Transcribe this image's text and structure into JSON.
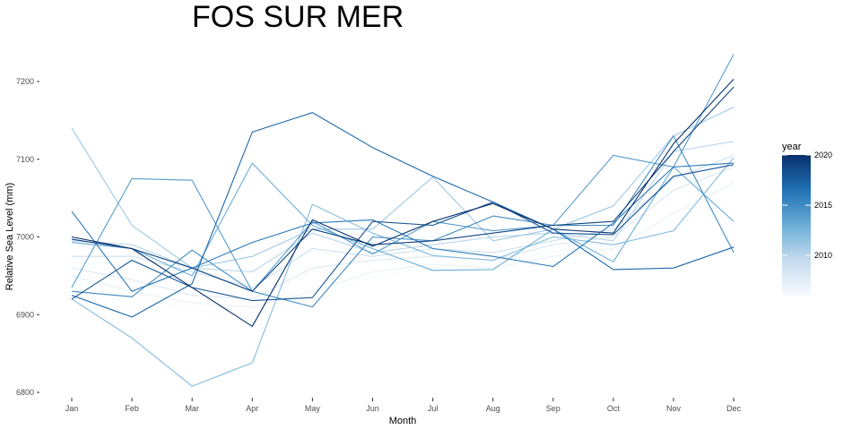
{
  "chart_data": {
    "type": "line",
    "title": "FOS SUR MER",
    "xlabel": "Month",
    "ylabel": "Relative Sea Level (mm)",
    "categories": [
      "Jan",
      "Feb",
      "Mar",
      "Apr",
      "May",
      "Jun",
      "Jul",
      "Aug",
      "Sep",
      "Oct",
      "Nov",
      "Dec"
    ],
    "y_ticks": [
      6800,
      6900,
      7000,
      7100,
      7200
    ],
    "ylim": [
      6790,
      7240
    ],
    "grid": false,
    "legend": {
      "title": "year",
      "position": "right",
      "type": "colorbar",
      "range": [
        2006,
        2020
      ],
      "ticks": [
        2010,
        2015,
        2020
      ],
      "colors": [
        "#f7fbff",
        "#c6dbef",
        "#6baed6",
        "#2171b5",
        "#08306b"
      ]
    },
    "series": [
      {
        "year": 2006,
        "values": [
          6930,
          6925,
          6905,
          6900,
          6920,
          6950,
          6960,
          6970,
          6980,
          6990,
          7010,
          7050
        ]
      },
      {
        "year": 2007,
        "values": [
          6950,
          6930,
          6915,
          6910,
          6930,
          6955,
          6965,
          6960,
          6975,
          6985,
          7030,
          7070
        ]
      },
      {
        "year": 2008,
        "values": [
          6960,
          6945,
          6925,
          6920,
          6960,
          6970,
          6975,
          6970,
          6990,
          7000,
          7060,
          7090
        ]
      },
      {
        "year": 2009,
        "values": [
          6975,
          6975,
          6955,
          6935,
          6985,
          6975,
          6985,
          6980,
          6995,
          7010,
          7075,
          7105
        ]
      },
      {
        "year": 2010,
        "values": [
          6995,
          6990,
          6960,
          6955,
          7005,
          6980,
          6990,
          7000,
          7005,
          6995,
          7110,
          7123
        ]
      },
      {
        "year": 2011,
        "values": [
          7140,
          7015,
          6960,
          6975,
          7010,
          7010,
          7077,
          6995,
          7010,
          7040,
          7130,
          7167
        ]
      },
      {
        "year": 2012,
        "values": [
          6920,
          6870,
          6808,
          6838,
          7042,
          7005,
          6976,
          6970,
          7000,
          6990,
          7008,
          7102
        ]
      },
      {
        "year": 2013,
        "values": [
          6993,
          6985,
          6950,
          7095,
          7015,
          6985,
          6957,
          6958,
          7010,
          6968,
          7090,
          7020
        ]
      },
      {
        "year": 2014,
        "values": [
          6935,
          7075,
          7073,
          6930,
          7020,
          6978,
          7020,
          7008,
          7015,
          7105,
          7090,
          7235
        ]
      },
      {
        "year": 2015,
        "values": [
          6930,
          6923,
          6983,
          6930,
          6910,
          7000,
          6995,
          7027,
          7015,
          7015,
          7130,
          6980
        ]
      },
      {
        "year": 2016,
        "values": [
          7033,
          6930,
          6960,
          6993,
          7018,
          7022,
          6985,
          6975,
          6962,
          7018,
          7090,
          7095
        ]
      },
      {
        "year": 2017,
        "values": [
          6925,
          6897,
          6940,
          7135,
          7160,
          7115,
          7078,
          7045,
          7010,
          6958,
          6960,
          6987
        ]
      },
      {
        "year": 2018,
        "values": [
          6920,
          6970,
          6935,
          6918,
          6922,
          7020,
          7015,
          7045,
          7005,
          7003,
          7078,
          7093
        ]
      },
      {
        "year": 2019,
        "values": [
          6997,
          6985,
          6960,
          6930,
          7010,
          6990,
          6995,
          7005,
          7015,
          7020,
          7110,
          7193
        ]
      },
      {
        "year": 2020,
        "values": [
          7000,
          6985,
          6935,
          6885,
          7022,
          6988,
          7020,
          7043,
          7010,
          7005,
          7120,
          7203
        ]
      }
    ]
  }
}
